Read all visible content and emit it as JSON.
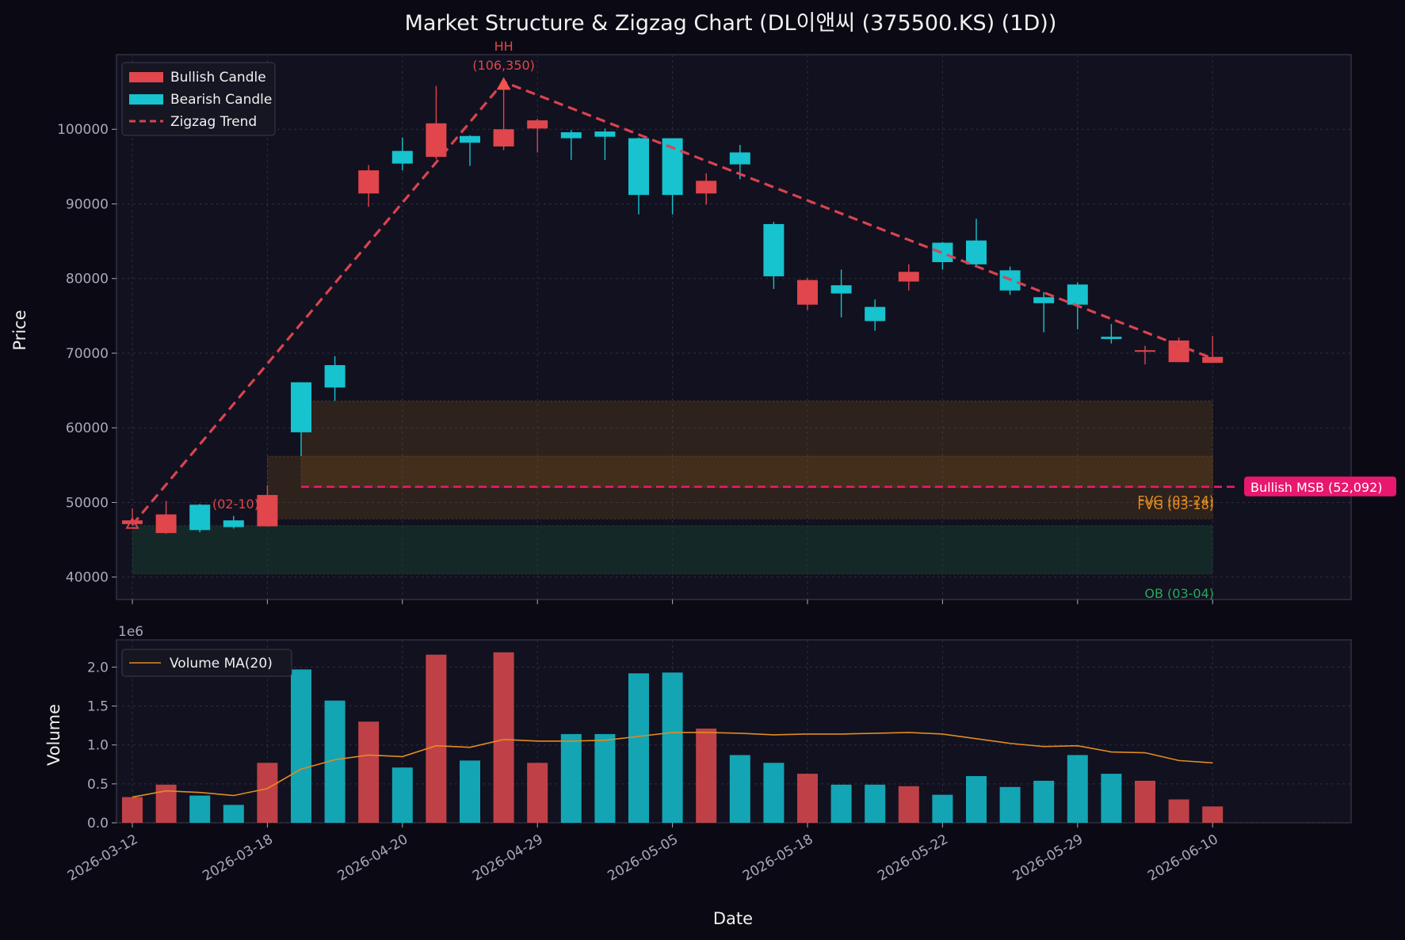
{
  "chart_data": {
    "type": "candlestick",
    "title": "Market Structure & Zigzag Chart (DL이앤씨 (375500.KS) (1D))",
    "price_panel": {
      "ylabel": "Price",
      "ylim": [
        37000,
        110000
      ],
      "yticks": [
        40000,
        50000,
        60000,
        70000,
        80000,
        90000,
        100000
      ],
      "candles": [
        {
          "o": 47600,
          "h": 49200,
          "l": 46900,
          "c": 47100,
          "dir": "bull"
        },
        {
          "o": 48400,
          "h": 50200,
          "l": 45800,
          "c": 45900,
          "dir": "bull"
        },
        {
          "o": 46300,
          "h": 49800,
          "l": 46000,
          "c": 49700,
          "dir": "bear"
        },
        {
          "o": 46700,
          "h": 48200,
          "l": 46500,
          "c": 47600,
          "dir": "bear"
        },
        {
          "o": 51000,
          "h": 52300,
          "l": 46800,
          "c": 46800,
          "dir": "bull"
        },
        {
          "o": 59400,
          "h": 66100,
          "l": 56200,
          "c": 66100,
          "dir": "bear"
        },
        {
          "o": 65400,
          "h": 69600,
          "l": 63600,
          "c": 68400,
          "dir": "bear"
        },
        {
          "o": 94500,
          "h": 95200,
          "l": 89600,
          "c": 91400,
          "dir": "bull"
        },
        {
          "o": 95400,
          "h": 98900,
          "l": 94500,
          "c": 97100,
          "dir": "bear"
        },
        {
          "o": 100800,
          "h": 105800,
          "l": 96000,
          "c": 96300,
          "dir": "bull"
        },
        {
          "o": 98200,
          "h": 99200,
          "l": 95100,
          "c": 99100,
          "dir": "bear"
        },
        {
          "o": 100000,
          "h": 106350,
          "l": 97200,
          "c": 97700,
          "dir": "bull"
        },
        {
          "o": 101200,
          "h": 101400,
          "l": 96900,
          "c": 100100,
          "dir": "bull"
        },
        {
          "o": 98800,
          "h": 99900,
          "l": 95900,
          "c": 99600,
          "dir": "bear"
        },
        {
          "o": 99000,
          "h": 100100,
          "l": 95900,
          "c": 99700,
          "dir": "bear"
        },
        {
          "o": 91200,
          "h": 98900,
          "l": 88600,
          "c": 98800,
          "dir": "bear"
        },
        {
          "o": 91200,
          "h": 98800,
          "l": 88600,
          "c": 98800,
          "dir": "bear"
        },
        {
          "o": 93100,
          "h": 94100,
          "l": 89900,
          "c": 91400,
          "dir": "bull"
        },
        {
          "o": 95300,
          "h": 97900,
          "l": 93300,
          "c": 96900,
          "dir": "bear"
        },
        {
          "o": 80300,
          "h": 87600,
          "l": 78600,
          "c": 87300,
          "dir": "bear"
        },
        {
          "o": 79800,
          "h": 80100,
          "l": 75800,
          "c": 76500,
          "dir": "bull"
        },
        {
          "o": 78000,
          "h": 81200,
          "l": 74800,
          "c": 79100,
          "dir": "bear"
        },
        {
          "o": 74300,
          "h": 77200,
          "l": 73000,
          "c": 76200,
          "dir": "bear"
        },
        {
          "o": 80900,
          "h": 81900,
          "l": 78400,
          "c": 79600,
          "dir": "bull"
        },
        {
          "o": 82200,
          "h": 84900,
          "l": 81200,
          "c": 84800,
          "dir": "bear"
        },
        {
          "o": 81900,
          "h": 88000,
          "l": 81500,
          "c": 85100,
          "dir": "bear"
        },
        {
          "o": 78400,
          "h": 81600,
          "l": 77800,
          "c": 81100,
          "dir": "bear"
        },
        {
          "o": 76700,
          "h": 78200,
          "l": 72800,
          "c": 77500,
          "dir": "bear"
        },
        {
          "o": 76500,
          "h": 79500,
          "l": 73200,
          "c": 79200,
          "dir": "bear"
        },
        {
          "o": 71900,
          "h": 73900,
          "l": 71300,
          "c": 72200,
          "dir": "bear"
        },
        {
          "o": 70400,
          "h": 71000,
          "l": 68500,
          "c": 70200,
          "dir": "bull"
        },
        {
          "o": 71700,
          "h": 72100,
          "l": 68800,
          "c": 68800,
          "dir": "bull"
        },
        {
          "o": 69500,
          "h": 72300,
          "l": 68700,
          "c": 68700,
          "dir": "bull"
        }
      ],
      "zigzag": [
        {
          "i": 0,
          "price": 47000
        },
        {
          "i": 11,
          "price": 106350
        },
        {
          "i": 32,
          "price": 69300
        }
      ],
      "hh_label": "HH",
      "hh_value": "(106,350)",
      "low_label": "(02-10)",
      "zones": [
        {
          "label": "FVG (03-24)",
          "start": 5,
          "end": 32,
          "y0": 52000,
          "y1": 63600,
          "kind": "fvg"
        },
        {
          "label": "FVG (03-18)",
          "start": 4,
          "end": 32,
          "y0": 47800,
          "y1": 56200,
          "kind": "fvg"
        },
        {
          "label": "OB (03-04)",
          "start": 0,
          "end": 32,
          "y0": 40400,
          "y1": 46900,
          "kind": "ob"
        }
      ],
      "msb": {
        "label": "Bullish MSB (52,092)",
        "price": 52092,
        "start": 5
      }
    },
    "volume_panel": {
      "ylabel": "Volume",
      "exponent_label": "1e6",
      "ylim": [
        0,
        2.35
      ],
      "yticks": [
        "0.0",
        "0.5",
        "1.0",
        "1.5",
        "2.0"
      ],
      "volumes": [
        0.33,
        0.49,
        0.35,
        0.23,
        0.77,
        1.97,
        1.57,
        1.3,
        0.71,
        2.16,
        0.8,
        2.19,
        0.77,
        1.14,
        1.14,
        1.92,
        1.93,
        1.21,
        0.87,
        0.77,
        0.63,
        0.49,
        0.49,
        0.47,
        0.36,
        0.6,
        0.46,
        0.54,
        0.87,
        0.63,
        0.54,
        0.3,
        0.21
      ],
      "ma": [
        0.33,
        0.41,
        0.39,
        0.35,
        0.44,
        0.69,
        0.81,
        0.87,
        0.85,
        0.99,
        0.97,
        1.07,
        1.05,
        1.05,
        1.06,
        1.11,
        1.16,
        1.16,
        1.15,
        1.13,
        1.14,
        1.14,
        1.15,
        1.16,
        1.14,
        1.08,
        1.02,
        0.98,
        0.99,
        0.91,
        0.9,
        0.8,
        0.77
      ],
      "ma_label": "Volume MA(20)"
    },
    "xlabel": "Date",
    "xticks": [
      {
        "i": 0,
        "label": "2026-03-12"
      },
      {
        "i": 4,
        "label": "2026-03-18"
      },
      {
        "i": 8,
        "label": "2026-04-20"
      },
      {
        "i": 12,
        "label": "2026-04-29"
      },
      {
        "i": 16,
        "label": "2026-05-05"
      },
      {
        "i": 20,
        "label": "2026-05-18"
      },
      {
        "i": 24,
        "label": "2026-05-22"
      },
      {
        "i": 28,
        "label": "2026-05-29"
      },
      {
        "i": 32,
        "label": "2026-06-10"
      }
    ],
    "legend": {
      "bull": "Bullish Candle",
      "bear": "Bearish Candle",
      "zigzag": "Zigzag Trend"
    },
    "colors": {
      "bull": "#e0464b",
      "bear": "#16c3cf",
      "zigzag": "#d94350",
      "msb": "#e8186e",
      "fvg_text": "#e08c20",
      "ob_text": "#27a95a",
      "ma": "#e08c20"
    }
  }
}
